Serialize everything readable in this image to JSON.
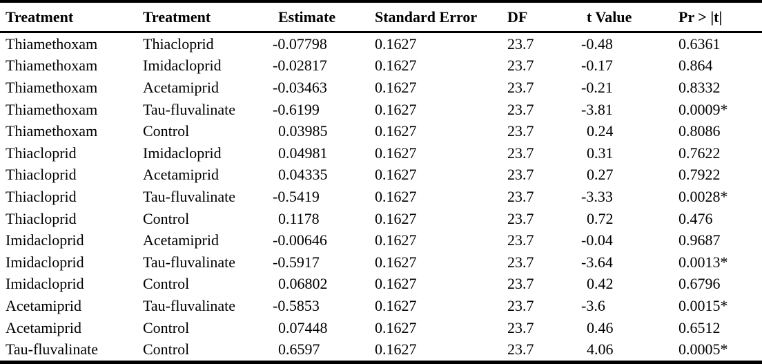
{
  "colors": {
    "background": "#ffffff",
    "text": "#000000",
    "rule_lines": "#000000"
  },
  "table": {
    "columns": [
      "Treatment",
      "Treatment",
      "Estimate",
      "Standard Error",
      "DF",
      "t Value",
      "Pr > |t|"
    ],
    "rows": [
      [
        "Thiamethoxam",
        "Thiacloprid",
        "-0.07798",
        "0.1627",
        "23.7",
        "-0.48",
        "0.6361"
      ],
      [
        "Thiamethoxam",
        "Imidacloprid",
        "-0.02817",
        "0.1627",
        "23.7",
        "-0.17",
        "0.864"
      ],
      [
        "Thiamethoxam",
        "Acetamiprid",
        "-0.03463",
        "0.1627",
        "23.7",
        "-0.21",
        "0.8332"
      ],
      [
        "Thiamethoxam",
        "Tau-fluvalinate",
        "-0.6199",
        "0.1627",
        "23.7",
        "-3.81",
        "0.0009*"
      ],
      [
        "Thiamethoxam",
        "Control",
        "0.03985",
        "0.1627",
        "23.7",
        "0.24",
        "0.8086"
      ],
      [
        "Thiacloprid",
        "Imidacloprid",
        "0.04981",
        "0.1627",
        "23.7",
        "0.31",
        "0.7622"
      ],
      [
        "Thiacloprid",
        "Acetamiprid",
        "0.04335",
        "0.1627",
        "23.7",
        "0.27",
        "0.7922"
      ],
      [
        "Thiacloprid",
        "Tau-fluvalinate",
        "-0.5419",
        "0.1627",
        "23.7",
        "-3.33",
        "0.0028*"
      ],
      [
        "Thiacloprid",
        "Control",
        "0.1178",
        "0.1627",
        "23.7",
        "0.72",
        "0.476"
      ],
      [
        "Imidacloprid",
        "Acetamiprid",
        "-0.00646",
        "0.1627",
        "23.7",
        "-0.04",
        "0.9687"
      ],
      [
        "Imidacloprid",
        "Tau-fluvalinate",
        "-0.5917",
        "0.1627",
        "23.7",
        "-3.64",
        "0.0013*"
      ],
      [
        "Imidacloprid",
        "Control",
        "0.06802",
        "0.1627",
        "23.7",
        "0.42",
        "0.6796"
      ],
      [
        "Acetamiprid",
        "Tau-fluvalinate",
        "-0.5853",
        "0.1627",
        "23.7",
        "-3.6",
        "0.0015*"
      ],
      [
        "Acetamiprid",
        "Control",
        "0.07448",
        "0.1627",
        "23.7",
        "0.46",
        "0.6512"
      ],
      [
        "Tau-fluvalinate",
        "Control",
        "0.6597",
        "0.1627",
        "23.7",
        "4.06",
        "0.0005*"
      ]
    ]
  }
}
